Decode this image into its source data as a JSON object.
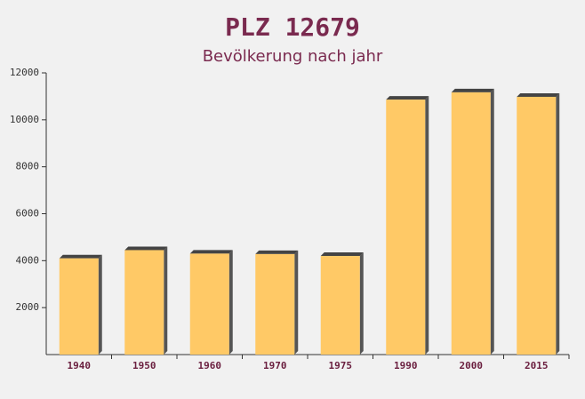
{
  "chart_data": {
    "type": "bar",
    "title": "PLZ 12679",
    "subtitle": "Bevölkerung nach jahr",
    "categories": [
      "1940",
      "1950",
      "1960",
      "1970",
      "1975",
      "1990",
      "2000",
      "2015"
    ],
    "values": [
      4100,
      4450,
      4300,
      4280,
      4200,
      10860,
      11170,
      10980
    ],
    "color": "#ffc966",
    "ylim": [
      0,
      12000
    ],
    "yticks": [
      2000,
      4000,
      6000,
      8000,
      10000,
      12000
    ]
  }
}
